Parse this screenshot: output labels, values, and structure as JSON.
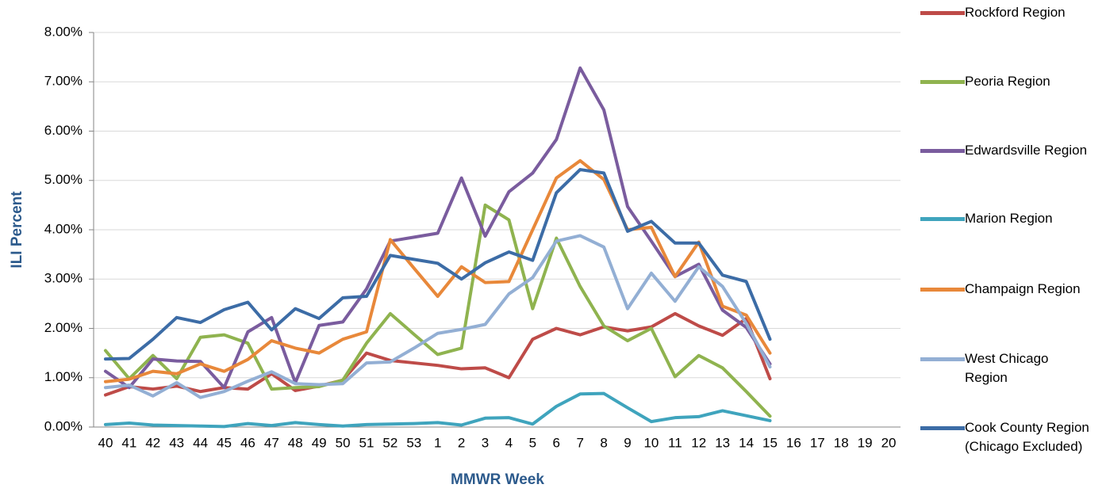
{
  "chart_data": {
    "type": "line",
    "y_label": "ILI Percent",
    "x_label": "MMWR Week",
    "categories": [
      "40",
      "41",
      "42",
      "43",
      "44",
      "45",
      "46",
      "47",
      "48",
      "49",
      "50",
      "51",
      "52",
      "53",
      "1",
      "2",
      "3",
      "4",
      "5",
      "6",
      "7",
      "8",
      "9",
      "10",
      "11",
      "12",
      "13",
      "14",
      "15",
      "16",
      "17",
      "18",
      "19",
      "20"
    ],
    "ylim": [
      0,
      8
    ],
    "yticks": [
      {
        "value": 0,
        "label": "0.00%"
      },
      {
        "value": 1,
        "label": "1.00%"
      },
      {
        "value": 2,
        "label": "2.00%"
      },
      {
        "value": 3,
        "label": "3.00%"
      },
      {
        "value": 4,
        "label": "4.00%"
      },
      {
        "value": 5,
        "label": "5.00%"
      },
      {
        "value": 6,
        "label": "6.00%"
      },
      {
        "value": 7,
        "label": "7.00%"
      },
      {
        "value": 8,
        "label": "8.00%"
      }
    ],
    "grid": true,
    "legend_position": "right",
    "series": [
      {
        "name": "Rockford Region",
        "color": "#be4b48",
        "values": [
          0.65,
          0.82,
          0.77,
          0.83,
          0.72,
          0.8,
          0.77,
          1.08,
          0.74,
          0.83,
          0.95,
          1.5,
          1.35,
          1.3,
          1.25,
          1.18,
          1.2,
          1.0,
          1.78,
          2.0,
          1.87,
          2.03,
          1.95,
          2.03,
          2.3,
          2.05,
          1.86,
          2.2,
          0.98,
          null,
          null,
          null,
          null,
          null
        ]
      },
      {
        "name": "Peoria Region",
        "color": "#8fb34f",
        "values": [
          1.55,
          0.98,
          1.45,
          0.98,
          1.82,
          1.87,
          1.7,
          0.77,
          0.8,
          0.82,
          0.95,
          1.7,
          2.3,
          1.88,
          1.47,
          1.6,
          4.5,
          4.2,
          2.4,
          3.83,
          2.85,
          2.05,
          1.75,
          2.0,
          1.02,
          1.45,
          1.2,
          0.72,
          0.22,
          null,
          null,
          null,
          null,
          null
        ]
      },
      {
        "name": "Edwardsville Region",
        "color": "#7a5c9e",
        "values": [
          1.13,
          0.8,
          1.38,
          1.34,
          1.33,
          0.8,
          1.93,
          2.22,
          0.9,
          2.06,
          2.13,
          2.8,
          3.77,
          3.85,
          3.93,
          5.05,
          3.87,
          4.77,
          5.15,
          5.83,
          7.28,
          6.43,
          4.47,
          3.77,
          3.05,
          3.3,
          2.37,
          2.02,
          1.28,
          null,
          null,
          null,
          null,
          null
        ]
      },
      {
        "name": "Marion Region",
        "color": "#3fa4bd",
        "values": [
          0.05,
          0.08,
          0.04,
          0.03,
          0.02,
          0.01,
          0.07,
          0.03,
          0.09,
          0.05,
          0.02,
          0.05,
          0.06,
          0.07,
          0.09,
          0.04,
          0.18,
          0.19,
          0.06,
          0.42,
          0.67,
          0.68,
          0.39,
          0.11,
          0.19,
          0.21,
          0.33,
          0.23,
          0.13,
          null,
          null,
          null,
          null,
          null
        ]
      },
      {
        "name": "Champaign Region",
        "color": "#e8883a",
        "values": [
          0.92,
          0.97,
          1.13,
          1.08,
          1.28,
          1.13,
          1.37,
          1.75,
          1.6,
          1.5,
          1.78,
          1.93,
          3.8,
          3.22,
          2.65,
          3.25,
          2.93,
          2.95,
          4.0,
          5.05,
          5.4,
          5.02,
          4.0,
          4.05,
          3.05,
          3.75,
          2.45,
          2.27,
          1.5,
          null,
          null,
          null,
          null,
          null
        ]
      },
      {
        "name": "West Chicago Region",
        "color": "#93afd4",
        "values": [
          0.8,
          0.85,
          0.63,
          0.9,
          0.6,
          0.72,
          0.93,
          1.12,
          0.88,
          0.86,
          0.88,
          1.3,
          1.32,
          1.6,
          1.9,
          1.98,
          2.08,
          2.7,
          3.03,
          3.77,
          3.88,
          3.65,
          2.4,
          3.12,
          2.55,
          3.25,
          2.85,
          2.1,
          1.22,
          null,
          null,
          null,
          null,
          null
        ]
      },
      {
        "name": "Cook County Region (Chicago Excluded)",
        "color": "#3c6ca6",
        "values": [
          1.38,
          1.39,
          1.78,
          2.22,
          2.12,
          2.38,
          2.53,
          1.97,
          2.4,
          2.2,
          2.62,
          2.65,
          3.48,
          3.4,
          3.32,
          3.0,
          3.33,
          3.55,
          3.38,
          4.75,
          5.22,
          5.15,
          3.97,
          4.17,
          3.73,
          3.73,
          3.08,
          2.95,
          1.78,
          null,
          null,
          null,
          null,
          null
        ]
      }
    ]
  }
}
